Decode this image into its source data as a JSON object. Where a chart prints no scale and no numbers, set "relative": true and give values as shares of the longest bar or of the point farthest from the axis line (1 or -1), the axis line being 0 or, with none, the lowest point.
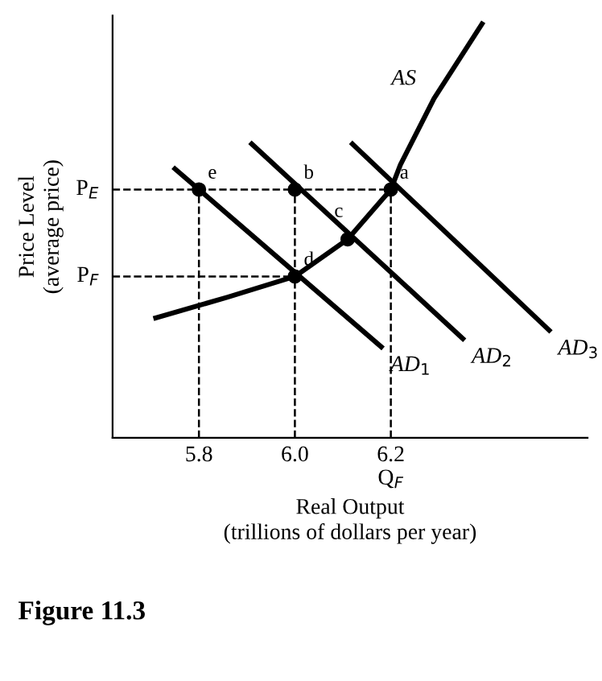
{
  "chart_data": {
    "type": "line",
    "relative": true,
    "xlabel": "Real Output\n(trillions of dollars per year)",
    "ylabel": "Price Level\n(average price)",
    "xlim": [
      5.62,
      6.61
    ],
    "xticks": [
      5.8,
      {
        "value": 6.0,
        "label": "6.0"
      },
      {
        "value": 6.2,
        "label": "6.2\nQ$_{F}$"
      }
    ],
    "tick_labels": "x",
    "grid": false,
    "legend": false,
    "series": [
      {
        "color": "#000000",
        "x": [
          5.71,
          5.86,
          6.0,
          6.11,
          6.2,
          6.22,
          6.29,
          6.39
        ],
        "values": [
          0.29,
          0.34,
          0.39,
          0.48,
          0.6,
          0.66,
          0.82,
          1.0
        ]
      },
      {
        "color": "#000000",
        "x": [
          5.75,
          6.18
        ],
        "values": [
          0.65,
          0.22
        ]
      },
      {
        "color": "#000000",
        "x": [
          5.91,
          6.35
        ],
        "values": [
          0.71,
          0.24
        ]
      },
      {
        "color": "#000000",
        "x": [
          6.12,
          6.53
        ],
        "values": [
          0.71,
          0.26
        ]
      },
      {
        "type": "line",
        "color": "#000000",
        "line_style": "dashed",
        "x": [
          5.62,
          6.2
        ],
        "values": [
          0.6,
          0.6
        ]
      },
      {
        "type": "line",
        "color": "#000000",
        "line_style": "dashed",
        "x": [
          5.62,
          6.0
        ],
        "values": [
          0.39,
          0.39
        ]
      },
      {
        "type": "line",
        "color": "#000000",
        "line_style": "dashed",
        "x": [
          5.8,
          5.8
        ],
        "values": [
          0,
          0.6
        ]
      },
      {
        "type": "line",
        "color": "#000000",
        "line_style": "dashed",
        "x": [
          6.0,
          6.0
        ],
        "values": [
          0,
          0.6
        ]
      },
      {
        "type": "line",
        "color": "#000000",
        "line_style": "dashed",
        "x": [
          6.2,
          6.2
        ],
        "values": [
          0,
          0.6
        ]
      },
      {
        "type": "scatter",
        "color": "#000000",
        "marker": "circle",
        "x": [
          6.2,
          6.0,
          6.11,
          6.0,
          5.8
        ],
        "values": [
          0.6,
          0.6,
          0.48,
          0.39,
          0.6
        ]
      }
    ],
    "annotations": [
      {
        "text": "P$_{E}$",
        "x": 5.62,
        "y": 0.6
      },
      {
        "text": "P$_{F}$",
        "x": 5.62,
        "y": 0.39
      },
      {
        "text": "a",
        "x": 6.2,
        "y": 0.6
      },
      {
        "text": "b",
        "x": 6.0,
        "y": 0.6
      },
      {
        "text": "c",
        "x": 6.11,
        "y": 0.48
      },
      {
        "text": "d",
        "x": 6.0,
        "y": 0.39
      },
      {
        "text": "e",
        "x": 5.8,
        "y": 0.6
      },
      {
        "text": "AS",
        "x": 6.29,
        "y": 0.82
      },
      {
        "text": "AD$_{1}$",
        "x": 6.18,
        "y": 0.22
      },
      {
        "text": "AD$_{2}$",
        "x": 6.35,
        "y": 0.24
      },
      {
        "text": "AD$_{3}$",
        "x": 6.53,
        "y": 0.26
      },
      "Figure 11.3"
    ]
  }
}
